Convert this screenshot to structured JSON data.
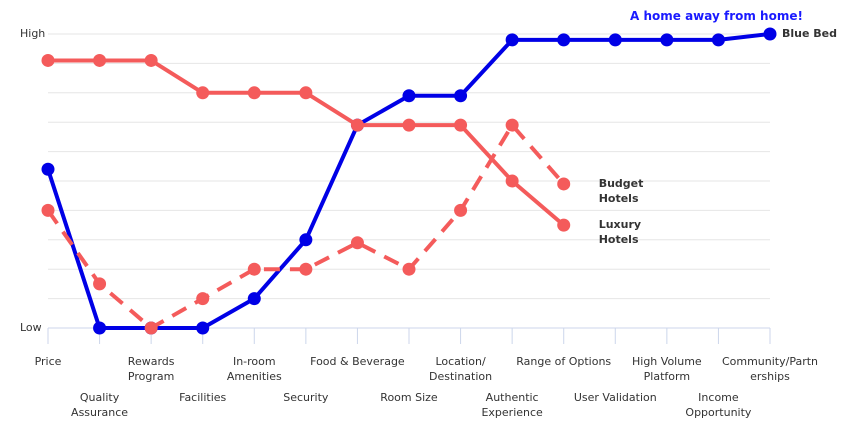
{
  "chart_data": {
    "type": "line",
    "annotation": "A home away from home!",
    "annotation_color": "#1a1aff",
    "categories": [
      "Price",
      "Quality\nAssurance",
      "Rewards\nProgram",
      "Facilities",
      "In-room\nAmenities",
      "Security",
      "Food & Beverage",
      "Room Size",
      "Location/\nDestination",
      "Authentic\nExperience",
      "Range of Options",
      "User Validation",
      "High Volume\nPlatform",
      "Income\nOpportunity",
      "Community/Partn\nerships"
    ],
    "series": [
      {
        "name": "Blue Bed",
        "color": "#0000e6",
        "dashed": false,
        "values": [
          5.4,
          0,
          0,
          0,
          1,
          3,
          6.9,
          7.9,
          7.9,
          9.8,
          9.8,
          9.8,
          9.8,
          9.8,
          10
        ]
      },
      {
        "name": "Budget\nHotels",
        "color": "#f45b5b",
        "dashed": true,
        "values": [
          4,
          1.5,
          0,
          1,
          2,
          2,
          2.9,
          2,
          4,
          6.9,
          4.9,
          null,
          null,
          null,
          null
        ]
      },
      {
        "name": "Luxury\nHotels",
        "color": "#f45b5b",
        "dashed": false,
        "values": [
          9.1,
          9.1,
          9.1,
          8,
          8,
          8,
          6.9,
          6.9,
          6.9,
          5,
          3.5,
          null,
          null,
          null,
          null
        ]
      }
    ],
    "ylim": [
      0,
      10
    ],
    "yticks": [
      {
        "value": 0,
        "label": "Low"
      },
      {
        "value": 10,
        "label": "High"
      }
    ],
    "minor_yticks": [
      1,
      2,
      3,
      4,
      5,
      6,
      7,
      8,
      9
    ],
    "grid": true
  }
}
